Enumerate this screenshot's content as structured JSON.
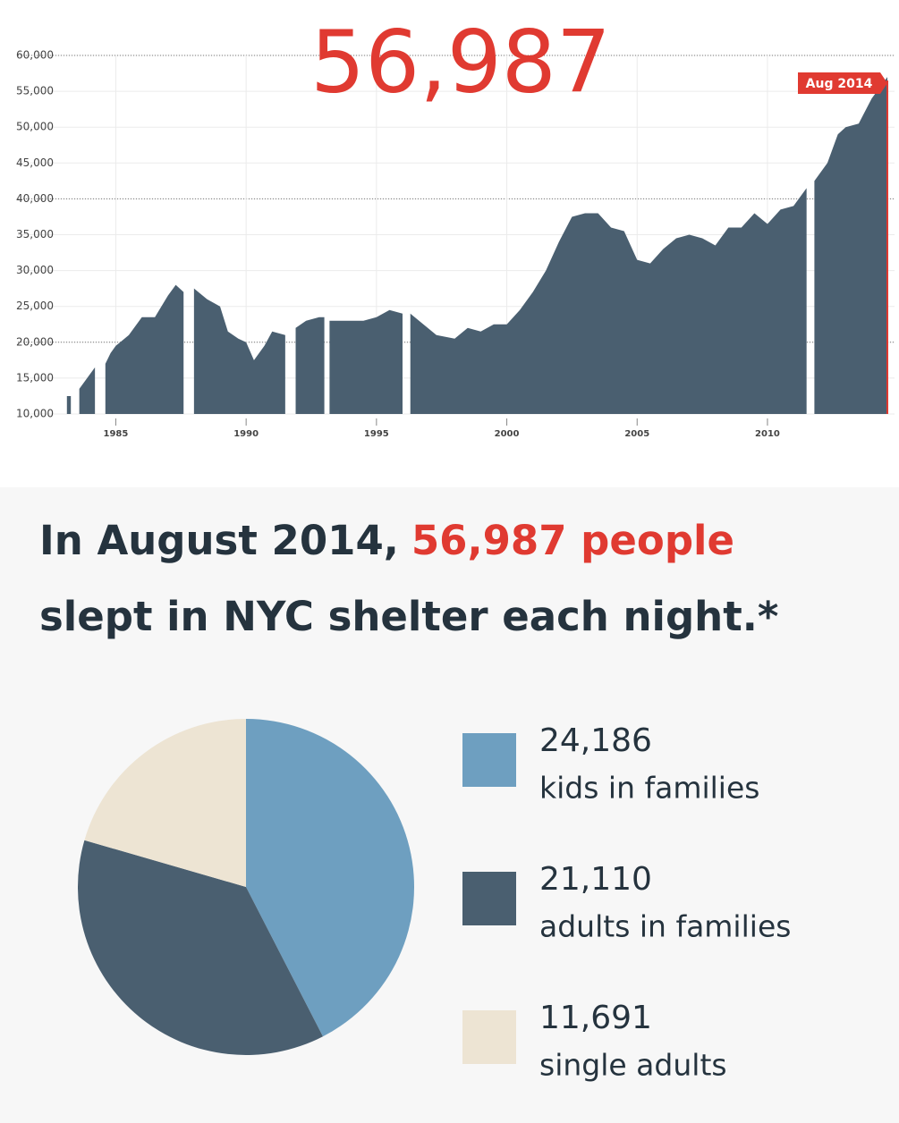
{
  "chart_data": [
    {
      "type": "area",
      "title": "56,987",
      "x": [
        1983.2,
        1983.4,
        1983.6,
        1983.8,
        1984.0,
        1984.2,
        1984.4,
        1984.6,
        1984.8,
        1985.0,
        1985.5,
        1986.0,
        1986.5,
        1987.0,
        1987.3,
        1987.6,
        1987.7,
        1988.0,
        1988.5,
        1989.0,
        1989.3,
        1989.7,
        1990.0,
        1990.3,
        1990.7,
        1991.0,
        1991.5,
        1991.7,
        1991.9,
        1992.3,
        1992.8,
        1993.0,
        1993.1,
        1993.2,
        1994.0,
        1994.5,
        1995.0,
        1995.5,
        1996.0,
        1996.2,
        1996.3,
        1996.8,
        1997.3,
        1998.0,
        1998.5,
        1999.0,
        1999.5,
        2000.0,
        2000.5,
        2001.0,
        2001.5,
        2002.0,
        2002.5,
        2003.0,
        2003.5,
        2004.0,
        2004.5,
        2005.0,
        2005.5,
        2006.0,
        2006.5,
        2007.0,
        2007.5,
        2008.0,
        2008.5,
        2009.0,
        2009.5,
        2010.0,
        2010.5,
        2011.0,
        2011.5,
        2011.6,
        2011.8,
        2012.3,
        2012.7,
        2013.0,
        2013.5,
        2014.0,
        2014.6
      ],
      "values": [
        12500,
        null,
        13500,
        14500,
        15500,
        16500,
        null,
        17000,
        18500,
        19500,
        21000,
        23500,
        23500,
        26500,
        28000,
        27000,
        null,
        27500,
        26000,
        25000,
        21500,
        20500,
        20000,
        17500,
        19500,
        21500,
        21000,
        null,
        22000,
        23000,
        23500,
        23500,
        null,
        23000,
        23000,
        23000,
        23500,
        24500,
        24000,
        null,
        24000,
        22500,
        21000,
        20500,
        22000,
        21500,
        22500,
        22500,
        24500,
        27000,
        30000,
        34000,
        37500,
        38000,
        38000,
        36000,
        35500,
        31500,
        31000,
        33000,
        34500,
        35000,
        34500,
        33500,
        36000,
        36000,
        38000,
        36500,
        38500,
        39000,
        41500,
        null,
        42500,
        45000,
        49000,
        50000,
        50500,
        54000,
        56987
      ],
      "color": "#4a5f70",
      "xlim": [
        1983.2,
        2014.6
      ],
      "xticks": [
        1985,
        1990,
        1995,
        2000,
        2005,
        2010
      ],
      "ylim": [
        10000,
        60000
      ],
      "yticks": [
        {
          "value": 10000,
          "label": "10,000"
        },
        {
          "value": 15000,
          "label": "15,000"
        },
        {
          "value": 20000,
          "label": "20,000"
        },
        {
          "value": 25000,
          "label": "25,000"
        },
        {
          "value": 30000,
          "label": "30,000"
        },
        {
          "value": 35000,
          "label": "35,000"
        },
        {
          "value": 40000,
          "label": "40,000"
        },
        {
          "value": 45000,
          "label": "45,000"
        },
        {
          "value": 50000,
          "label": "50,000"
        },
        {
          "value": 55000,
          "label": "55,000"
        },
        {
          "value": 60000,
          "label": "60,000"
        }
      ],
      "grid": true,
      "major_gridlines": [
        20000,
        40000,
        60000
      ],
      "highlight": {
        "x": 2014.6,
        "label": "Aug 2014",
        "color": "#e03a31"
      }
    },
    {
      "type": "pie",
      "categories": [
        "kids in families",
        "adults in families",
        "single adults"
      ],
      "values": [
        24186,
        21110,
        11691
      ],
      "value_labels": [
        "24,186",
        "21,110",
        "11,691"
      ],
      "colors": [
        "#6e9fc0",
        "#4a5f70",
        "#ede4d3"
      ]
    }
  ],
  "headline": {
    "lead": "In August 2014,",
    "emphasis": "56,987 people",
    "rest": "slept in NYC shelter each night.*"
  }
}
